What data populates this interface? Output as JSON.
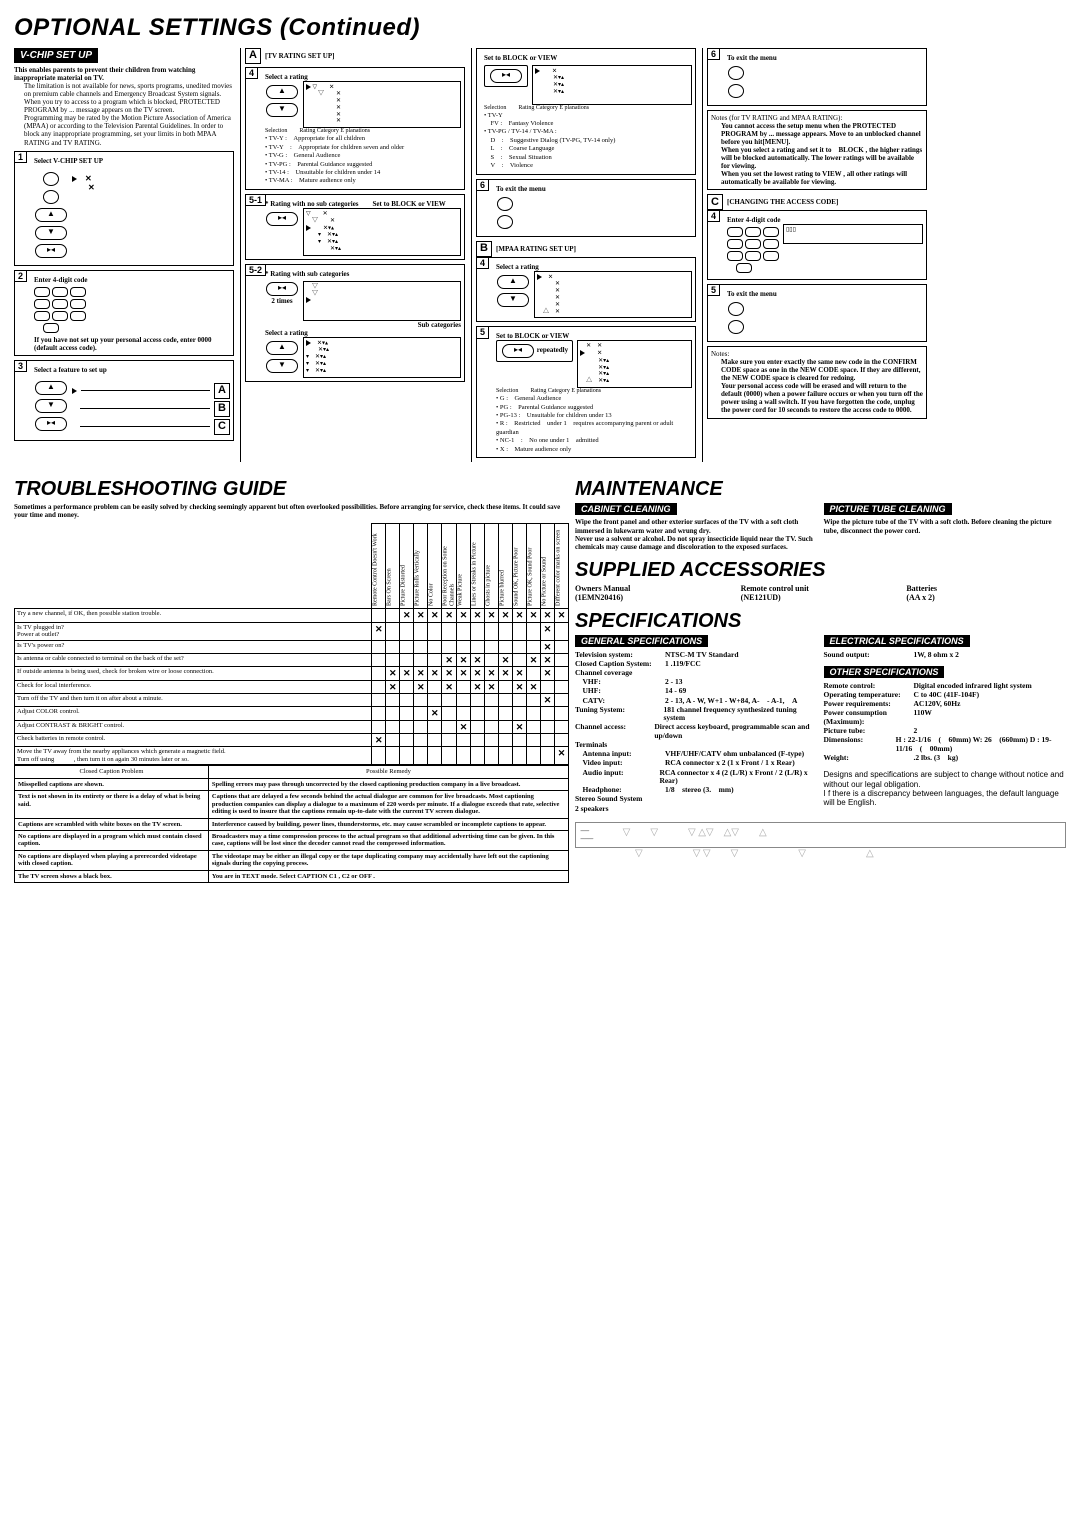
{
  "page_title": "OPTIONAL SETTINGS (Continued)",
  "vchip": {
    "header": "V-CHIP SET UP",
    "intro": "This enables parents to prevent their children from watching inappropriate material on TV.",
    "intro_items": [
      "The limitation is not available for news, sports programs, unedited movies on premium cable channels and Emergency Broadcast System signals.",
      "When you try to access to a program which is blocked, PROTECTED PROGRAM by ... message appears on the TV screen.",
      "Programming may be rated by the Motion Picture Association of America (MPAA) or according to the Television Parental Guidelines. In order to block any inappropriate programming, set your limits in both MPAA RATING and TV RATING."
    ],
    "s1": "Select V-CHIP SET UP",
    "s2": "Enter 4-digit code",
    "s2_note": "If you have not set up your personal access code, enter 0000 (default access code).",
    "s3": "Select a feature to set up",
    "a_title": "[TV RATING SET UP]",
    "a4": "Select a rating",
    "tv_cats": [
      "• TV-Y :　Appropriate for all children",
      "• TV-Y　:　Appropriate for children seven and older",
      "• TV-G :　General Audience",
      "• TV-PG :　Parental Guidance suggested",
      "• TV-14 :　Unsuitable for children under 14",
      "• TV-MA :　Mature audience only"
    ],
    "a51": "* Rating with no sub categories　　Set to  BLOCK  or  VIEW",
    "a52": "* Rating with sub categories",
    "a52_2times": "2 times",
    "a52_sub": "Sub categories",
    "a52_sel": "Select a rating",
    "block_title": "Set to  BLOCK  or  VIEW",
    "tv_sub_cats": [
      "• TV-Y",
      "　FV :　Fantasy Violence",
      "• TV-PG / TV-14 / TV-MA :",
      "　D　:　Suggestive Dialog (TV-PG, TV-14 only)",
      "　L　:　Coarse Language",
      "　S　:　Sexual Situation",
      "　V　:　Violence"
    ],
    "a6": "To exit the menu",
    "b_title": "[MPAA RATING SET UP]",
    "b4": "Select a rating",
    "b5": "Set to  BLOCK  or  VIEW",
    "b5_rep": "repeatedly",
    "mpaa_cats": [
      "• G :　General Audience",
      "• PG :　Parental Guidance suggested",
      "• PG-13 :　Unsuitable for children under 13",
      "• R :　Restricted　under 1　requires accompanying parent or adult guardian",
      "• NC-1　:　No one under  1　admitted",
      "• X :　Mature audience only"
    ],
    "b6": "To exit the menu",
    "notes_title": "Notes (for TV RATING and MPAA RATING):",
    "notes_items": [
      "You cannot access the setup menu when the PROTECTED PROGRAM by ... message appears. Move to an unblocked channel before you hit[MENU].",
      "When you select a rating and set it to　BLOCK , the higher ratings will be blocked automatically. The lower ratings will be available for viewing.",
      "When you set the lowest rating to  VIEW , all other ratings will automatically be available for viewing."
    ],
    "c_title": "[CHANGING THE ACCESS CODE]",
    "c4": "Enter 4-digit code",
    "c5": "To exit the menu",
    "c_notes_title": "Notes:",
    "c_notes": [
      "Make sure you enter exactly the same new code in the CONFIRM CODE space as one in the NEW CODE space. If they are different, the NEW CODE space is cleared for redoing.",
      "Your personal access code will be erased and will return to the default (0000) when a power failure occurs or when you turn off the power using a wall switch. If you have forgotten the code, unplug the power cord for 10 seconds to restore the access code to 0000."
    ]
  },
  "trouble": {
    "title": "TROUBLESHOOTING GUIDE",
    "intro": "Sometimes a performance problem can be easily solved by checking seemingly apparent but often overlooked possibilities. Before arranging for service, check these items. It could save your time and money.",
    "headers": [
      "Remote Control Doesn't Work",
      "Bars On Screen",
      "Picture Distorted",
      "Picture Rolls Vertically",
      "No Color",
      "Poor Reception on Some Channels",
      "Weak Picture",
      "Lines or Streaks in Picture",
      "Ghosts in picture",
      "Picture blurred",
      "Sound OK, Picture Poor",
      "Picture OK, Sound Poor",
      "No Picture or Sound",
      "Different color marks on screen"
    ],
    "rows": [
      {
        "t": "Try a new channel, if OK, then possible station trouble.",
        "x": [
          0,
          0,
          1,
          1,
          1,
          1,
          1,
          1,
          1,
          1,
          1,
          1,
          1,
          1
        ]
      },
      {
        "t": "Is TV plugged in?\nPower at outlet?",
        "x": [
          1,
          0,
          0,
          0,
          0,
          0,
          0,
          0,
          0,
          0,
          0,
          0,
          1,
          0
        ]
      },
      {
        "t": "Is TV's power on?",
        "x": [
          0,
          0,
          0,
          0,
          0,
          0,
          0,
          0,
          0,
          0,
          0,
          0,
          1,
          0
        ]
      },
      {
        "t": "Is antenna or cable connected to terminal on the back of the set?",
        "x": [
          0,
          0,
          0,
          0,
          0,
          1,
          1,
          1,
          0,
          1,
          0,
          1,
          1,
          0
        ]
      },
      {
        "t": "If outside antenna is being used, check for broken wire or loose connection.",
        "x": [
          0,
          1,
          1,
          1,
          1,
          1,
          1,
          1,
          1,
          1,
          1,
          0,
          1,
          0
        ]
      },
      {
        "t": "Check for local interference.",
        "x": [
          0,
          1,
          0,
          1,
          0,
          1,
          0,
          1,
          1,
          0,
          1,
          1,
          0,
          0
        ]
      },
      {
        "t": "Turn off the TV and then turn it on after about a minute.",
        "x": [
          0,
          0,
          0,
          0,
          0,
          0,
          0,
          0,
          0,
          0,
          0,
          0,
          1,
          0
        ]
      },
      {
        "t": "Adjust COLOR control.",
        "x": [
          0,
          0,
          0,
          0,
          1,
          0,
          0,
          0,
          0,
          0,
          0,
          0,
          0,
          0
        ]
      },
      {
        "t": "Adjust CONTRAST & BRIGHT control.",
        "x": [
          0,
          0,
          0,
          0,
          0,
          0,
          1,
          0,
          0,
          0,
          1,
          0,
          0,
          0
        ]
      },
      {
        "t": "Check batteries in remote control.",
        "x": [
          1,
          0,
          0,
          0,
          0,
          0,
          0,
          0,
          0,
          0,
          0,
          0,
          0,
          0
        ]
      },
      {
        "t": "Move the TV away from the nearby appliances which generate a magnetic field.\nTurn off using　　　, then turn it on again 30 minutes later or so.",
        "x": [
          0,
          0,
          0,
          0,
          0,
          0,
          0,
          0,
          0,
          0,
          0,
          0,
          0,
          1
        ]
      }
    ],
    "cc_header": [
      "Closed Caption Problem",
      "Possible Remedy"
    ],
    "cc": [
      [
        "Misspelled captions are shown.",
        "Spelling errors may pass through uncorrected by the closed captioning production company in a live broadcast."
      ],
      [
        "Text is not shown in its entirety or there is a delay of what is being said.",
        "Captions that are delayed a few seconds behind the actual dialogue are common for live broadcasts. Most captioning production companies can display a dialogue to a maximum of 220 words per minute. If a dialogue exceeds that rate, selective editing is used to insure that the captions remain up-to-date with the current TV screen dialogue."
      ],
      [
        "Captions are scrambled with white boxes on the TV screen.",
        "Interference caused by building, power lines, thunderstorms, etc. may cause scrambled or incomplete captions to appear."
      ],
      [
        "No captions are displayed in a program which must contain closed caption.",
        "Broadcasters may a time compression process to the actual program so that additional advertising time can be given. In this case, captions will be lost since the decoder cannot read the compressed information."
      ],
      [
        "No captions are displayed when playing a prerecorded videotape with closed caption.",
        "The videotape may be either an illegal copy or the tape duplicating company may accidentally have left out the captioning signals during the copying process."
      ],
      [
        "The TV screen shows a black box.",
        "You are in TEXT mode. Select CAPTION  C1 ,  C2  or  OFF ."
      ]
    ]
  },
  "maint": {
    "title": "MAINTENANCE",
    "cab_h": "CABINET CLEANING",
    "cab": "Wipe the front panel and other exterior surfaces of the TV with a soft cloth immersed in lukewarm water and wrung dry.\nNever use a solvent or alcohol. Do not spray insecticide liquid near the TV. Such chemicals may cause damage and discoloration to the exposed surfaces.",
    "pic_h": "PICTURE TUBE CLEANING",
    "pic": "Wipe the picture tube of the TV with a soft cloth. Before cleaning the picture tube, disconnect the power cord."
  },
  "supp": {
    "title": "SUPPLIED ACCESSORIES",
    "items": [
      [
        "Owners Manual",
        "(1EMN20416)"
      ],
      [
        "Remote control unit",
        "(NE121UD)"
      ],
      [
        "Batteries",
        "(AA x 2)"
      ]
    ]
  },
  "spec": {
    "title": "SPECIFICATIONS",
    "gen_h": "GENERAL SPECIFICATIONS",
    "gen": [
      [
        "Television system:",
        "NTSC-M TV Standard"
      ],
      [
        "Closed Caption System:",
        "1 .119/FCC"
      ],
      [
        "Channel coverage",
        ""
      ],
      [
        "　VHF:",
        "2 - 13"
      ],
      [
        "　UHF:",
        "14 - 69"
      ],
      [
        "　CATV:",
        "2 - 13, A - W, W+1 - W+84, A-　- A-1,　A"
      ],
      [
        "Tuning System:",
        "181 channel frequency synthesized tuning system"
      ],
      [
        "Channel access:",
        "Direct access keyboard, programmable scan and up/down"
      ],
      [
        "Terminals",
        ""
      ],
      [
        "　Antenna input:",
        "VHF/UHF/CATV ohm unbalanced (F-type)"
      ],
      [
        "　Video input:",
        "RCA connector x 2 (1 x Front / 1 x Rear)"
      ],
      [
        "　Audio input:",
        "RCA connector x 4 (2 (L/R) x Front / 2 (L/R) x Rear)"
      ],
      [
        "　Headphone:",
        "1/8　stereo (3.　mm)"
      ],
      [
        "Stereo Sound System",
        ""
      ],
      [
        "2 speakers",
        ""
      ]
    ],
    "elec_h": "ELECTRICAL SPECIFICATIONS",
    "elec": [
      [
        "Sound output:",
        "1W, 8 ohm x 2"
      ]
    ],
    "other_h": "OTHER SPECIFICATIONS",
    "other": [
      [
        "Remote control:",
        "Digital encoded infrared light system"
      ],
      [
        "Operating temperature:",
        "C to 40C (41F-104F)"
      ],
      [
        "Power requirements:",
        "AC120V, 60Hz"
      ],
      [
        "Power consumption (Maximum):",
        "110W"
      ],
      [
        "Picture tube:",
        "2"
      ],
      [
        "Dimensions:",
        "H : 22-1/16　(　60mm) W: 26　(660mm) D : 19-11/16　(　00mm)"
      ],
      [
        "Weight:",
        ".2 lbs. (3　kg)"
      ]
    ],
    "note": "Designs and specifications are subject to change without notice and without our legal obligation.\nI f there is a discrepancy between languages, the default language will be English."
  }
}
